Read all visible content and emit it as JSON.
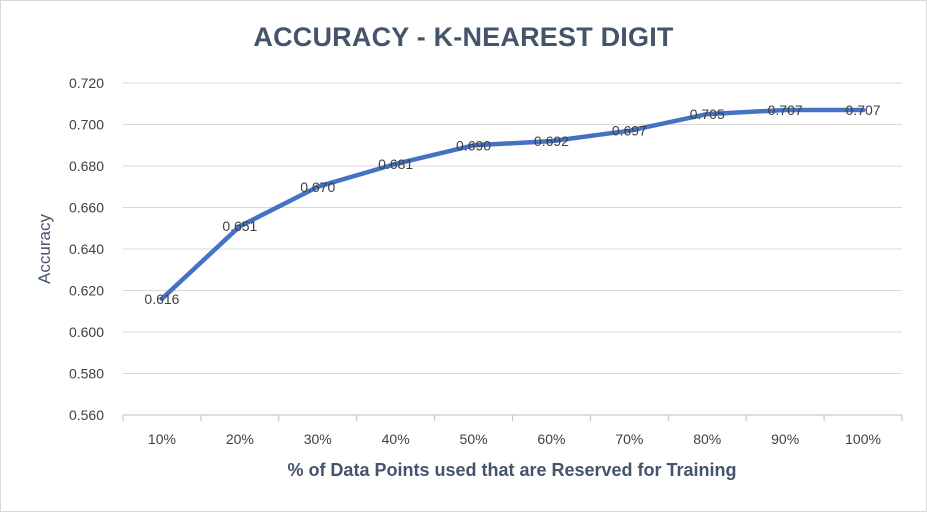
{
  "chart_data": {
    "type": "line",
    "title": "ACCURACY - K-NEAREST DIGIT",
    "xlabel": "% of Data Points used that are Reserved for Training",
    "ylabel": "Accuracy",
    "categories": [
      "10%",
      "20%",
      "30%",
      "40%",
      "50%",
      "60%",
      "70%",
      "80%",
      "90%",
      "100%"
    ],
    "series": [
      {
        "values": [
          0.616,
          0.651,
          0.67,
          0.681,
          0.69,
          0.692,
          0.697,
          0.705,
          0.707,
          0.707
        ],
        "labels": [
          "0.616",
          "0.651",
          "0.670",
          "0.681",
          "0.690",
          "0.692",
          "0.697",
          "0.705",
          "0.707",
          "0.707"
        ],
        "color": "#4472c4"
      }
    ],
    "ylim": [
      0.56,
      0.72
    ],
    "yticks": [
      "0.560",
      "0.580",
      "0.600",
      "0.620",
      "0.640",
      "0.660",
      "0.680",
      "0.700",
      "0.720"
    ],
    "grid": true,
    "gridColor": "#d9d9d9",
    "legend": "none"
  }
}
